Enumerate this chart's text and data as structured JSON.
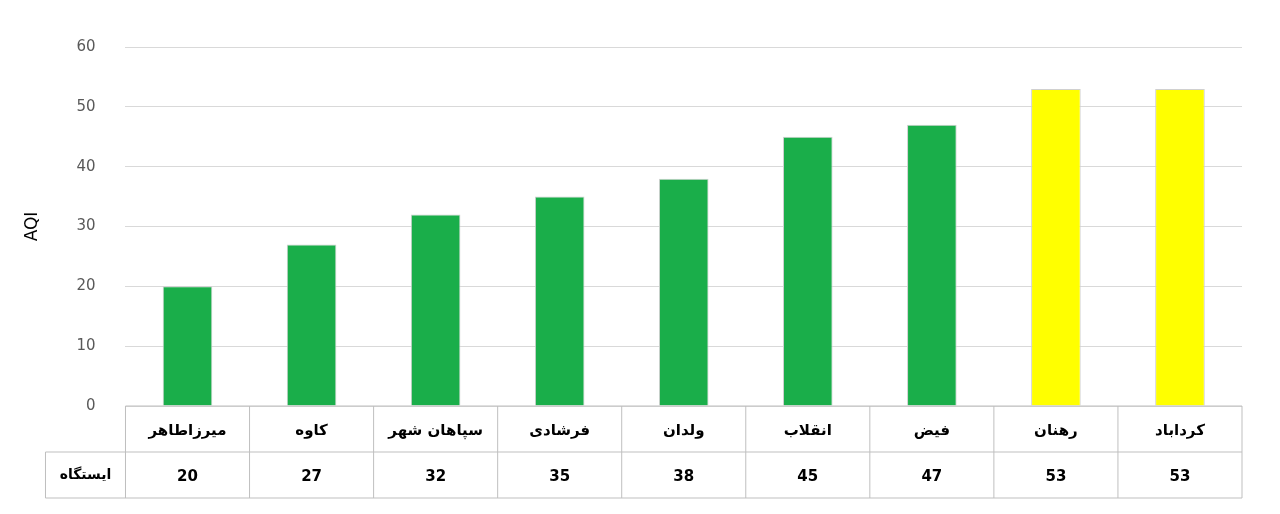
{
  "chart_data": {
    "type": "bar",
    "ylabel": "AQI",
    "xlabel": "ایستگاه",
    "categories": [
      "میرزاطاهر",
      "کاوه",
      "سپاهان شهر",
      "فرشادی",
      "ولدان",
      "انقلاب",
      "فیض",
      "رهنان",
      "کرداباد"
    ],
    "values": [
      20,
      27,
      32,
      35,
      38,
      45,
      47,
      53,
      53
    ],
    "colors": [
      "#1aae4a",
      "#1aae4a",
      "#1aae4a",
      "#1aae4a",
      "#1aae4a",
      "#1aae4a",
      "#1aae4a",
      "#ffff00",
      "#ffff00"
    ],
    "ylim": [
      0,
      60
    ],
    "yticks": [
      0,
      10,
      20,
      30,
      40,
      50,
      60
    ],
    "grid": "y",
    "legend": false,
    "data_labels": true
  }
}
